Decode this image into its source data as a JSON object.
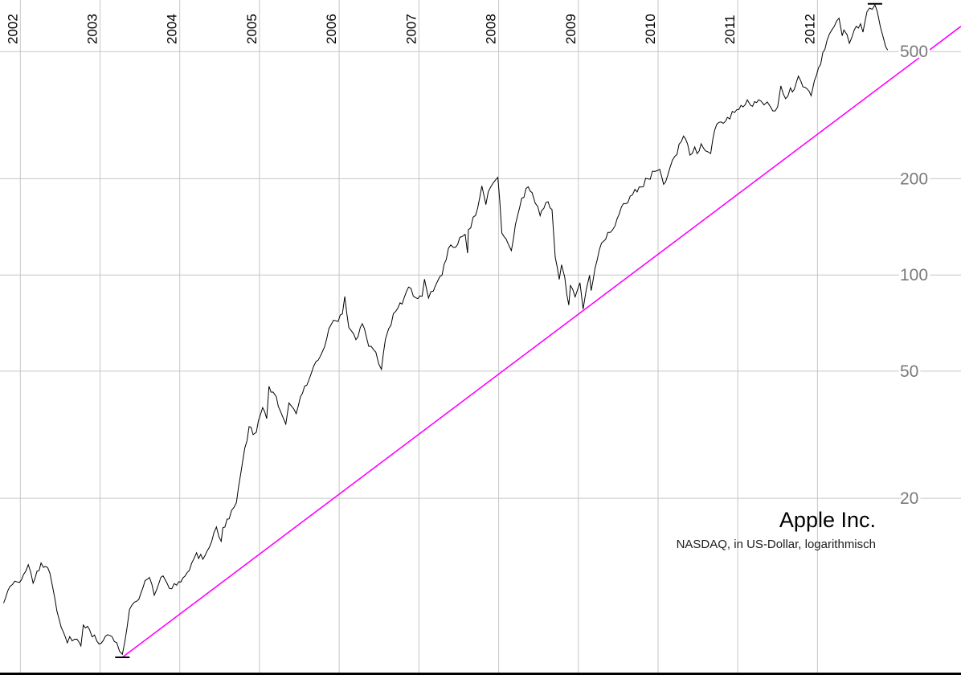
{
  "chart_data": {
    "type": "line",
    "title": "Apple Inc.",
    "subtitle": "NASDAQ, in US-Dollar, logarithmisch",
    "y_scale": "log10",
    "x_unit": "year",
    "x_axis_side": "top",
    "y_axis_side": "right",
    "grid": true,
    "legend_position": "none",
    "x_ticks": [
      2002,
      2003,
      2004,
      2005,
      2006,
      2007,
      2008,
      2009,
      2010,
      2011,
      2012
    ],
    "y_ticks": [
      500,
      200,
      100,
      50,
      20
    ],
    "x_range": [
      2001.745,
      2013.8
    ],
    "y_range": [
      5.6,
      725
    ],
    "series": [
      {
        "name": "Apple Inc.",
        "color": "#000000",
        "points": [
          [
            2001.79,
            9.4
          ],
          [
            2001.87,
            10.6
          ],
          [
            2001.96,
            10.95
          ],
          [
            2002.04,
            11.55
          ],
          [
            2002.1,
            12.4
          ],
          [
            2002.16,
            10.85
          ],
          [
            2002.21,
            11.84
          ],
          [
            2002.26,
            12.55
          ],
          [
            2002.29,
            12.16
          ],
          [
            2002.37,
            11.69
          ],
          [
            2002.46,
            8.86
          ],
          [
            2002.54,
            7.63
          ],
          [
            2002.59,
            7.06
          ],
          [
            2002.62,
            7.38
          ],
          [
            2002.71,
            7.25
          ],
          [
            2002.76,
            6.9
          ],
          [
            2002.79,
            8.03
          ],
          [
            2002.87,
            7.75
          ],
          [
            2002.96,
            7.16
          ],
          [
            2003.04,
            7.18
          ],
          [
            2003.12,
            7.45
          ],
          [
            2003.21,
            7.07
          ],
          [
            2003.28,
            6.5
          ],
          [
            2003.31,
            7.11
          ],
          [
            2003.37,
            8.98
          ],
          [
            2003.46,
            9.53
          ],
          [
            2003.54,
            10.54
          ],
          [
            2003.59,
            11.15
          ],
          [
            2003.62,
            11.31
          ],
          [
            2003.68,
            9.95
          ],
          [
            2003.71,
            10.36
          ],
          [
            2003.79,
            11.44
          ],
          [
            2003.87,
            10.45
          ],
          [
            2003.96,
            10.69
          ],
          [
            2004.04,
            11.28
          ],
          [
            2004.12,
            11.89
          ],
          [
            2004.21,
            13.52
          ],
          [
            2004.29,
            12.89
          ],
          [
            2004.37,
            14.03
          ],
          [
            2004.46,
            16.27
          ],
          [
            2004.52,
            14.67
          ],
          [
            2004.54,
            16.17
          ],
          [
            2004.62,
            17.25
          ],
          [
            2004.71,
            19.38
          ],
          [
            2004.79,
            26.2
          ],
          [
            2004.87,
            33.53
          ],
          [
            2004.92,
            31.65
          ],
          [
            2004.96,
            32.2
          ],
          [
            2005.04,
            38.45
          ],
          [
            2005.09,
            35.5
          ],
          [
            2005.12,
            44.86
          ],
          [
            2005.17,
            43.0
          ],
          [
            2005.21,
            41.67
          ],
          [
            2005.29,
            36.06
          ],
          [
            2005.33,
            34.13
          ],
          [
            2005.37,
            39.76
          ],
          [
            2005.46,
            36.81
          ],
          [
            2005.54,
            42.65
          ],
          [
            2005.62,
            46.89
          ],
          [
            2005.71,
            53.61
          ],
          [
            2005.79,
            57.59
          ],
          [
            2005.87,
            67.82
          ],
          [
            2005.96,
            71.89
          ],
          [
            2006.04,
            75.51
          ],
          [
            2006.07,
            85.59
          ],
          [
            2006.12,
            68.49
          ],
          [
            2006.21,
            62.72
          ],
          [
            2006.29,
            70.39
          ],
          [
            2006.37,
            59.77
          ],
          [
            2006.46,
            57.27
          ],
          [
            2006.53,
            50.67
          ],
          [
            2006.58,
            63.0
          ],
          [
            2006.62,
            67.85
          ],
          [
            2006.71,
            76.98
          ],
          [
            2006.79,
            81.08
          ],
          [
            2006.87,
            91.66
          ],
          [
            2006.96,
            84.84
          ],
          [
            2007.04,
            85.73
          ],
          [
            2007.07,
            97.0
          ],
          [
            2007.12,
            84.61
          ],
          [
            2007.18,
            89.0
          ],
          [
            2007.21,
            92.91
          ],
          [
            2007.29,
            99.8
          ],
          [
            2007.37,
            121.19
          ],
          [
            2007.46,
            122.04
          ],
          [
            2007.54,
            131.76
          ],
          [
            2007.58,
            134.0
          ],
          [
            2007.61,
            117.05
          ],
          [
            2007.62,
            138.48
          ],
          [
            2007.71,
            153.47
          ],
          [
            2007.79,
            189.95
          ],
          [
            2007.84,
            166.0
          ],
          [
            2007.87,
            182.22
          ],
          [
            2007.96,
            198.08
          ],
          [
            2007.99,
            202.0
          ],
          [
            2008.04,
            135.36
          ],
          [
            2008.12,
            125.02
          ],
          [
            2008.16,
            119.15
          ],
          [
            2008.21,
            143.5
          ],
          [
            2008.29,
            173.95
          ],
          [
            2008.37,
            188.75
          ],
          [
            2008.42,
            181.0
          ],
          [
            2008.46,
            167.44
          ],
          [
            2008.52,
            153.23
          ],
          [
            2008.54,
            158.95
          ],
          [
            2008.62,
            169.53
          ],
          [
            2008.67,
            160.2
          ],
          [
            2008.71,
            113.66
          ],
          [
            2008.76,
            96.8
          ],
          [
            2008.79,
            107.59
          ],
          [
            2008.83,
            98.2
          ],
          [
            2008.88,
            80.49
          ],
          [
            2008.9,
            92.67
          ],
          [
            2008.96,
            85.35
          ],
          [
            2009.02,
            94.58
          ],
          [
            2009.06,
            78.2
          ],
          [
            2009.1,
            90.13
          ],
          [
            2009.14,
            99.72
          ],
          [
            2009.16,
            89.31
          ],
          [
            2009.21,
            105.12
          ],
          [
            2009.29,
            125.83
          ],
          [
            2009.37,
            135.81
          ],
          [
            2009.46,
            142.43
          ],
          [
            2009.54,
            163.39
          ],
          [
            2009.62,
            168.21
          ],
          [
            2009.71,
            185.35
          ],
          [
            2009.79,
            188.5
          ],
          [
            2009.87,
            199.91
          ],
          [
            2009.96,
            210.73
          ],
          [
            2010.02,
            214.01
          ],
          [
            2010.07,
            192.06
          ],
          [
            2010.12,
            204.62
          ],
          [
            2010.21,
            235.0
          ],
          [
            2010.29,
            261.09
          ],
          [
            2010.32,
            272.0
          ],
          [
            2010.37,
            256.88
          ],
          [
            2010.4,
            237.0
          ],
          [
            2010.46,
            251.53
          ],
          [
            2010.49,
            239.6
          ],
          [
            2010.54,
            257.25
          ],
          [
            2010.62,
            243.1
          ],
          [
            2010.66,
            239.93
          ],
          [
            2010.71,
            283.75
          ],
          [
            2010.79,
            300.98
          ],
          [
            2010.87,
            311.15
          ],
          [
            2010.96,
            322.56
          ],
          [
            2011.04,
            339.32
          ],
          [
            2011.12,
            353.21
          ],
          [
            2011.16,
            339.3
          ],
          [
            2011.21,
            348.51
          ],
          [
            2011.29,
            350.13
          ],
          [
            2011.33,
            340.5
          ],
          [
            2011.37,
            347.83
          ],
          [
            2011.44,
            325.9
          ],
          [
            2011.5,
            335.67
          ],
          [
            2011.54,
            390.48
          ],
          [
            2011.6,
            356.03
          ],
          [
            2011.66,
            384.83
          ],
          [
            2011.71,
            381.32
          ],
          [
            2011.76,
            419.0
          ],
          [
            2011.79,
            404.78
          ],
          [
            2011.87,
            382.2
          ],
          [
            2011.92,
            363.57
          ],
          [
            2011.96,
            405.0
          ],
          [
            2012.04,
            456.48
          ],
          [
            2012.12,
            542.44
          ],
          [
            2012.21,
            599.55
          ],
          [
            2012.27,
            636.23
          ],
          [
            2012.31,
            560.28
          ],
          [
            2012.33,
            583.98
          ],
          [
            2012.37,
            565.25
          ],
          [
            2012.4,
            530.38
          ],
          [
            2012.46,
            584.0
          ],
          [
            2012.54,
            610.76
          ],
          [
            2012.57,
            574.97
          ],
          [
            2012.62,
            665.24
          ],
          [
            2012.72,
            700.09
          ],
          [
            2012.75,
            667.1
          ],
          [
            2012.79,
            595.32
          ],
          [
            2012.83,
            547.06
          ],
          [
            2012.88,
            505.75
          ]
        ]
      }
    ],
    "trendline": {
      "name": "uptrend-support-line",
      "color": "#ff00ff",
      "points": [
        [
          2003.28,
          6.36
        ],
        [
          2013.8,
          600
        ]
      ]
    },
    "markers": [
      {
        "type": "high",
        "x": 2012.72,
        "value": 705.07
      },
      {
        "type": "low",
        "x": 2003.28,
        "value": 6.36
      }
    ]
  },
  "styles": {
    "background": "#ffffff",
    "grid_color": "#c6c6c6",
    "axis_color": "#000000",
    "price_label_color": "#7a7a7a",
    "year_label_color": "#000000",
    "price_line_color": "#000000",
    "trendline_color": "#ff00ff"
  }
}
